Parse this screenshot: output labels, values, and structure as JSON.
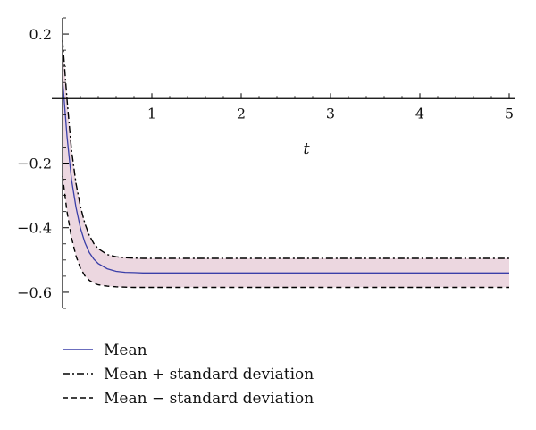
{
  "chart_data": {
    "type": "line",
    "xlabel": "t",
    "ylabel": "",
    "xlim": [
      0,
      5
    ],
    "ylim": [
      -0.65,
      0.25
    ],
    "x_ticks": [
      1,
      2,
      3,
      4,
      5
    ],
    "x_tick_labels": [
      "1",
      "2",
      "3",
      "4",
      "5"
    ],
    "y_ticks": [
      0.2,
      -0.2,
      -0.4,
      -0.6
    ],
    "y_tick_labels": [
      "0.2",
      "−0.2",
      "−0.4",
      "−0.6"
    ],
    "grid": false,
    "legend_position": "bottom-left",
    "band_color": "#ecd7e0",
    "series": [
      {
        "name": "Mean",
        "style": "solid",
        "color": "#3a3fa8",
        "x": [
          0,
          0.05,
          0.1,
          0.15,
          0.2,
          0.25,
          0.3,
          0.35,
          0.4,
          0.5,
          0.6,
          0.7,
          0.8,
          0.9,
          1.0,
          1.2,
          1.5,
          2.0,
          3.0,
          4.0,
          5.0
        ],
        "y": [
          0.06,
          -0.117,
          -0.25,
          -0.336,
          -0.401,
          -0.446,
          -0.477,
          -0.497,
          -0.511,
          -0.527,
          -0.535,
          -0.538,
          -0.539,
          -0.54,
          -0.54,
          -0.54,
          -0.54,
          -0.54,
          -0.54,
          -0.54,
          -0.54
        ]
      },
      {
        "name": "Mean + standard deviation",
        "style": "dashdot",
        "color": "#000000",
        "x": [
          0,
          0.05,
          0.1,
          0.15,
          0.2,
          0.25,
          0.3,
          0.35,
          0.4,
          0.5,
          0.6,
          0.7,
          0.8,
          0.9,
          1.0,
          1.2,
          1.5,
          2.0,
          3.0,
          4.0,
          5.0
        ],
        "y": [
          0.18,
          -0.002,
          -0.158,
          -0.262,
          -0.334,
          -0.387,
          -0.424,
          -0.449,
          -0.465,
          -0.483,
          -0.49,
          -0.493,
          -0.494,
          -0.495,
          -0.495,
          -0.495,
          -0.495,
          -0.495,
          -0.495,
          -0.495,
          -0.495
        ]
      },
      {
        "name": "Mean − standard deviation",
        "style": "dashed",
        "color": "#000000",
        "x": [
          0,
          0.05,
          0.1,
          0.15,
          0.2,
          0.25,
          0.3,
          0.35,
          0.4,
          0.5,
          0.6,
          0.7,
          0.8,
          0.9,
          1.0,
          1.2,
          1.5,
          2.0,
          3.0,
          4.0,
          5.0
        ],
        "y": [
          -0.24,
          -0.35,
          -0.43,
          -0.487,
          -0.525,
          -0.549,
          -0.563,
          -0.572,
          -0.577,
          -0.581,
          -0.583,
          -0.584,
          -0.585,
          -0.585,
          -0.585,
          -0.585,
          -0.585,
          -0.585,
          -0.585,
          -0.585,
          -0.585
        ]
      }
    ]
  }
}
